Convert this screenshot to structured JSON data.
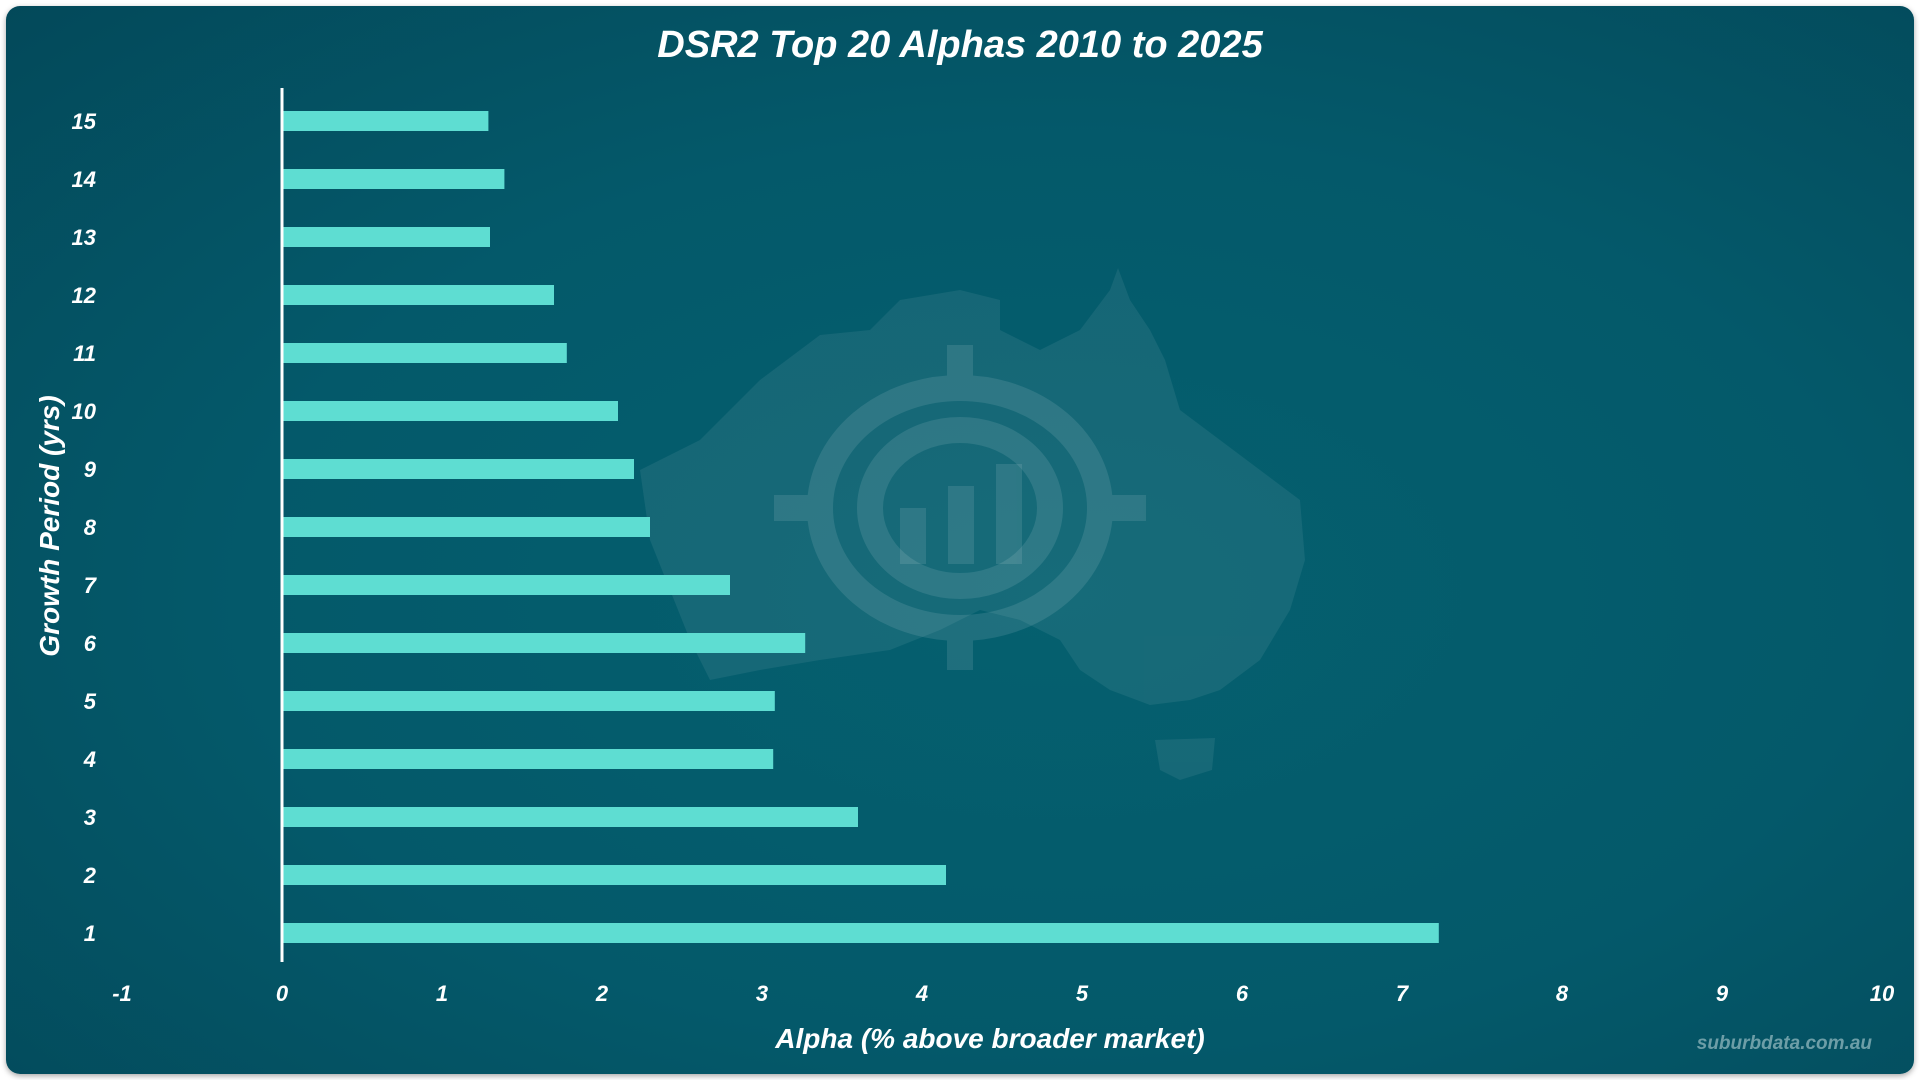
{
  "brand": {
    "background": "#04596a",
    "bar_color": "#5eddd2",
    "text_color": "#ffffff"
  },
  "credit": "suburbdata.com.au",
  "chart_data": {
    "type": "bar",
    "orientation": "horizontal",
    "title": "DSR2 Top 20 Alphas 2010 to 2025",
    "xlabel": "Alpha (% above broader market)",
    "ylabel": "Growth Period (yrs)",
    "xlim": [
      -1,
      10
    ],
    "xticks": [
      -1,
      0,
      1,
      2,
      3,
      4,
      5,
      6,
      7,
      8,
      9,
      10
    ],
    "grid": false,
    "legend": "none",
    "categories": [
      "1",
      "2",
      "3",
      "4",
      "5",
      "6",
      "7",
      "8",
      "9",
      "10",
      "11",
      "12",
      "13",
      "14",
      "15"
    ],
    "values": [
      7.23,
      4.15,
      3.6,
      3.07,
      3.08,
      3.27,
      2.8,
      2.3,
      2.2,
      2.1,
      1.78,
      1.7,
      1.3,
      1.39,
      1.29
    ]
  }
}
